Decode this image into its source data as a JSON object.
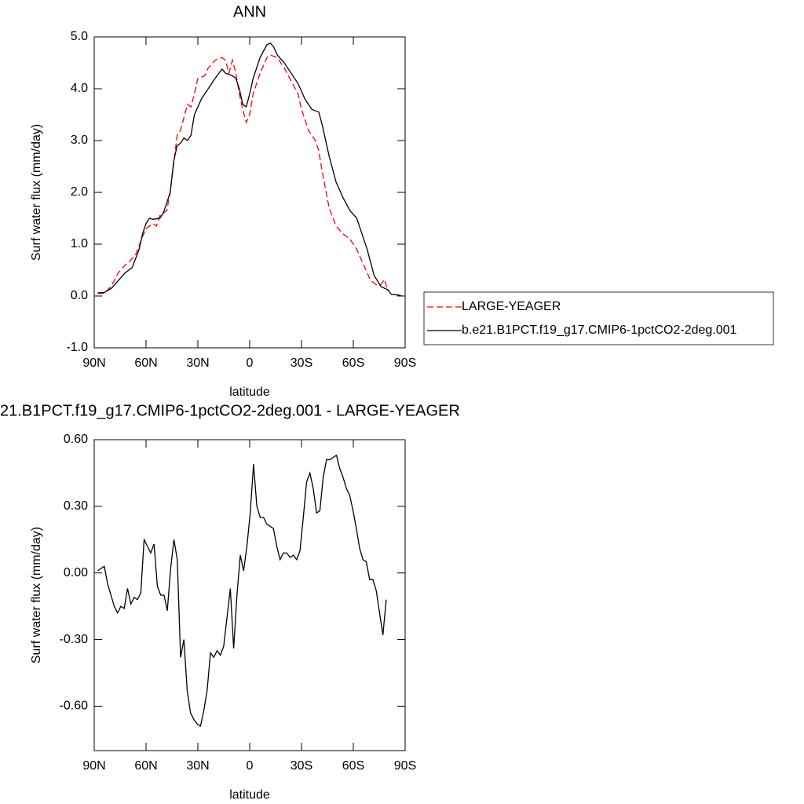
{
  "chart_data": [
    {
      "type": "line",
      "title": "ANN",
      "xlabel": "latitude",
      "ylabel": "Surf water flux (mm/day)",
      "xlim": [
        90,
        -90
      ],
      "xticks": [
        {
          "value": 90,
          "label": "90N"
        },
        {
          "value": 60,
          "label": "60N"
        },
        {
          "value": 30,
          "label": "30N"
        },
        0,
        {
          "value": -30,
          "label": "30S"
        },
        {
          "value": -60,
          "label": "60S"
        },
        {
          "value": -90,
          "label": "90S"
        }
      ],
      "ylim": [
        -1,
        5
      ],
      "yticks": [
        {
          "value": -1,
          "label": "-1.0"
        },
        {
          "value": 0,
          "label": "0.0"
        },
        {
          "value": 1,
          "label": "1.0"
        },
        {
          "value": 2,
          "label": "2.0"
        },
        {
          "value": 3,
          "label": "3.0"
        },
        {
          "value": 4,
          "label": "4.0"
        },
        {
          "value": 5,
          "label": "5.0"
        }
      ],
      "legend": "right",
      "series": [
        {
          "name": "LARGE-YEAGER",
          "color": "#ff0000",
          "dashed": true,
          "x": [
            88,
            84,
            80,
            76,
            72,
            70,
            66,
            62,
            60,
            56,
            54,
            52,
            48,
            46,
            42,
            40,
            36,
            34,
            32,
            30,
            26,
            24,
            20,
            16,
            14,
            12,
            10,
            8,
            6,
            4,
            2,
            0,
            -2,
            -6,
            -10,
            -12,
            -16,
            -20,
            -24,
            -28,
            -30,
            -34,
            -38,
            -40,
            -42,
            -46,
            -50,
            -54,
            -58,
            -62,
            -66,
            -70,
            -74,
            -76,
            -78,
            -80
          ],
          "values": [
            0.05,
            0.05,
            0.2,
            0.45,
            0.6,
            0.65,
            0.8,
            1.15,
            1.3,
            1.4,
            1.35,
            1.55,
            1.65,
            2.0,
            3.1,
            3.2,
            3.7,
            3.65,
            3.9,
            4.2,
            4.25,
            4.4,
            4.55,
            4.6,
            4.55,
            4.3,
            4.55,
            4.3,
            3.9,
            3.6,
            3.35,
            3.5,
            3.9,
            4.3,
            4.6,
            4.65,
            4.6,
            4.4,
            4.15,
            3.9,
            3.6,
            3.2,
            3.0,
            2.8,
            2.4,
            1.7,
            1.35,
            1.2,
            1.1,
            0.9,
            0.6,
            0.3,
            0.2,
            0.22,
            0.32,
            0.1
          ]
        },
        {
          "name": "b.e21.B1PCT.f19_g17.CMIP6-1pctCO2-2deg.001",
          "color": "#000000",
          "dashed": false,
          "x": [
            88,
            84,
            80,
            76,
            72,
            68,
            64,
            62,
            60,
            58,
            56,
            52,
            50,
            46,
            44,
            42,
            40,
            38,
            36,
            34,
            32,
            28,
            24,
            20,
            16,
            14,
            10,
            8,
            6,
            4,
            2,
            0,
            -2,
            -6,
            -10,
            -12,
            -14,
            -16,
            -20,
            -24,
            -28,
            -32,
            -36,
            -40,
            -42,
            -46,
            -50,
            -54,
            -58,
            -62,
            -64,
            -68,
            -72,
            -76,
            -80,
            -82,
            -86,
            -88
          ],
          "values": [
            0.06,
            0.07,
            0.15,
            0.3,
            0.45,
            0.55,
            0.9,
            1.2,
            1.4,
            1.5,
            1.48,
            1.5,
            1.6,
            2.0,
            2.6,
            2.9,
            2.95,
            3.05,
            3.0,
            3.1,
            3.5,
            3.8,
            4.0,
            4.2,
            4.38,
            4.3,
            4.25,
            4.2,
            4.0,
            3.7,
            3.65,
            3.9,
            4.2,
            4.6,
            4.85,
            4.88,
            4.8,
            4.65,
            4.5,
            4.3,
            4.1,
            3.8,
            3.6,
            3.55,
            3.3,
            2.7,
            2.2,
            1.9,
            1.65,
            1.5,
            1.3,
            0.9,
            0.4,
            0.18,
            0.12,
            0.03,
            0.02,
            0.0
          ]
        }
      ]
    },
    {
      "type": "line",
      "title": "21.B1PCT.f19_g17.CMIP6-1pctCO2-2deg.001 - LARGE-YEAGER",
      "xlabel": "latitude",
      "ylabel": "Surf water flux (mm/day)",
      "xlim": [
        90,
        -90
      ],
      "xticks": [
        {
          "value": 90,
          "label": "90N"
        },
        {
          "value": 60,
          "label": "60N"
        },
        {
          "value": 30,
          "label": "30N"
        },
        0,
        {
          "value": -30,
          "label": "30S"
        },
        {
          "value": -60,
          "label": "60S"
        },
        {
          "value": -90,
          "label": "90S"
        }
      ],
      "ylim": [
        -0.8,
        0.6
      ],
      "yticks": [
        {
          "value": -0.6,
          "label": "-0.60"
        },
        {
          "value": -0.3,
          "label": "-0.30"
        },
        {
          "value": 0,
          "label": "0.00"
        },
        {
          "value": 0.3,
          "label": "0.30"
        },
        {
          "value": 0.6,
          "label": "0.60"
        }
      ],
      "series": [
        {
          "color": "#000000",
          "dashed": false,
          "x": [
            88,
            86.08,
            84.16,
            82.24,
            80.32,
            78.4,
            76.48,
            74.56,
            72.64,
            70.72,
            68.8,
            66.88,
            64.96,
            63.04,
            61.12,
            59.2,
            57.28,
            55.36,
            53.44,
            51.52,
            49.6,
            47.68,
            45.76,
            43.84,
            41.92,
            40,
            38.08,
            36.16,
            34.24,
            32.32,
            30.4,
            28.48,
            26.56,
            24.64,
            22.72,
            20.8,
            18.88,
            16.96,
            15.04,
            13.12,
            11.2,
            9.28,
            7.36,
            5.44,
            3.52,
            1.6,
            -0.32,
            -2.24,
            -4.16,
            -6.08,
            -8,
            -9.92,
            -11.84,
            -13.76,
            -15.68,
            -17.6,
            -19.52,
            -21.44,
            -23.36,
            -25.28,
            -27.2,
            -29.12,
            -31.04,
            -32.96,
            -34.88,
            -36.8,
            -38.72,
            -40.64,
            -42.56,
            -44.48,
            -46.4,
            -48.32,
            -50.24,
            -52.16,
            -54.08,
            -56,
            -57.92,
            -59.84,
            -61.76,
            -63.68,
            -65.6,
            -67.52,
            -69.44,
            -71.36,
            -73.28,
            -75.2,
            -77.12,
            -79.04
          ],
          "values": [
            0.01,
            0.02,
            0.03,
            -0.05,
            -0.1,
            -0.15,
            -0.18,
            -0.15,
            -0.16,
            -0.07,
            -0.14,
            -0.11,
            -0.12,
            -0.09,
            0.15,
            0.12,
            0.09,
            0.13,
            -0.06,
            -0.1,
            -0.1,
            -0.17,
            0.02,
            0.15,
            0.06,
            -0.38,
            -0.3,
            -0.53,
            -0.63,
            -0.66,
            -0.68,
            -0.69,
            -0.62,
            -0.53,
            -0.36,
            -0.38,
            -0.35,
            -0.37,
            -0.33,
            -0.2,
            -0.07,
            -0.34,
            -0.1,
            0.08,
            0.01,
            0.12,
            0.27,
            0.49,
            0.3,
            0.25,
            0.25,
            0.22,
            0.21,
            0.2,
            0.12,
            0.06,
            0.09,
            0.09,
            0.07,
            0.08,
            0.06,
            0.1,
            0.25,
            0.41,
            0.45,
            0.38,
            0.27,
            0.28,
            0.43,
            0.51,
            0.51,
            0.52,
            0.53,
            0.47,
            0.43,
            0.38,
            0.35,
            0.28,
            0.2,
            0.11,
            0.06,
            0.05,
            -0.03,
            -0.03,
            -0.08,
            -0.18,
            -0.28,
            -0.12
          ]
        }
      ]
    }
  ]
}
